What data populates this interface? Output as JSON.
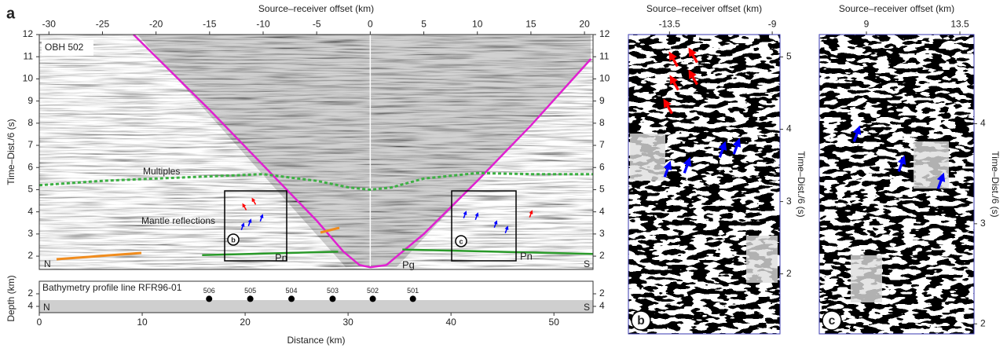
{
  "figure_label": "a",
  "chart_data": [
    {
      "type": "line",
      "xlabel": "Source–receiver offset (km)",
      "ylabel": "Time–Dist./6 (s)",
      "xlim": [
        -30.9,
        20.8
      ],
      "xticks": [
        -30,
        -25,
        -20,
        -15,
        -10,
        -5,
        0,
        5,
        10,
        15,
        20
      ],
      "ylim": [
        1.4,
        12
      ],
      "yticks": [
        2,
        3,
        4,
        5,
        6,
        7,
        8,
        9,
        10,
        11,
        12
      ],
      "annotations": [
        "OBH 502",
        "Multiples",
        "Mantle reflections",
        "Pn",
        "Pg",
        "Pn",
        "N",
        "S",
        "b",
        "c"
      ],
      "series": [
        {
          "color": "#e020d0",
          "x": [
            -22.1,
            -15,
            -10,
            -5,
            -2.5,
            -1,
            0,
            1.5,
            3,
            5,
            10,
            15,
            20.6
          ],
          "values": [
            12,
            8.6,
            6.1,
            3.6,
            2.2,
            1.6,
            1.5,
            1.6,
            2.2,
            3.0,
            5.4,
            7.9,
            10.9
          ]
        },
        {
          "color": "#2a9a2a",
          "x": [
            -15.7,
            -3,
            null,
            3,
            20.8
          ],
          "values": [
            2.05,
            2.2,
            null,
            2.3,
            2.1
          ]
        },
        {
          "color": "#3cb043",
          "dash": true,
          "x": [
            -30.9,
            -25,
            -20,
            -15,
            -10,
            -5,
            -2,
            0,
            2,
            5,
            10,
            15,
            20.8
          ],
          "values": [
            5.2,
            5.4,
            5.5,
            5.6,
            5.7,
            5.4,
            5.1,
            5.0,
            5.1,
            5.5,
            5.75,
            5.7,
            5.7
          ]
        }
      ]
    },
    {
      "type": "scatter",
      "title": "Bathymetry profile line RFR96-01",
      "xlabel": "Distance (km)",
      "ylabel": "Depth (km)",
      "xlim": [
        0,
        53.8
      ],
      "xticks": [
        0,
        10,
        20,
        30,
        40,
        50
      ],
      "ylim": [
        0,
        5
      ],
      "yticks": [
        2,
        4
      ],
      "y_inverted": true,
      "annotations": [
        "N",
        "S"
      ],
      "x": [
        16.5,
        20.5,
        24.5,
        28.5,
        32.4,
        36.3
      ],
      "values": [
        2.8,
        2.8,
        2.8,
        2.8,
        2.8,
        2.8
      ],
      "labels": [
        "506",
        "505",
        "504",
        "503",
        "502",
        "501"
      ]
    },
    {
      "type": "image",
      "label": "b",
      "xlabel": "Source–receiver offset (km)",
      "ylabel": "Time–Dist./6 (s)",
      "xlim": [
        -15.3,
        -8.66
      ],
      "xticks": [
        -13.5,
        -9
      ],
      "ylim": [
        1.17,
        5.31
      ],
      "yticks": [
        2,
        3,
        4,
        5
      ]
    },
    {
      "type": "image",
      "label": "c",
      "xlabel": "Source–receiver offset (km)",
      "ylabel": "Time–Dist./6 (s)",
      "xlim": [
        6.73,
        14.18
      ],
      "xticks": [
        9,
        13.5
      ],
      "ylim": [
        1.9,
        4.89
      ],
      "yticks": [
        2,
        3,
        4
      ]
    }
  ]
}
